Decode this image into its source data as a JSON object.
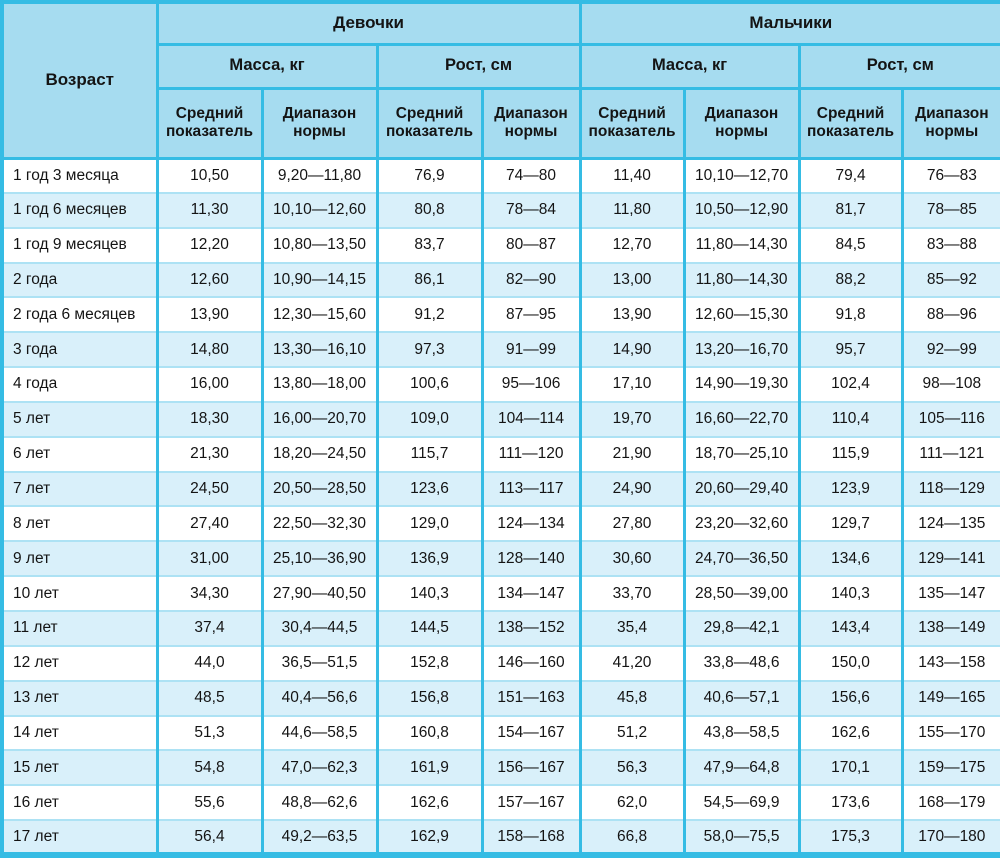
{
  "chart_data": {
    "type": "table",
    "header": {
      "age": "Возраст",
      "groups": [
        {
          "label": "Девочки"
        },
        {
          "label": "Мальчики"
        }
      ],
      "mass": "Масса, кг",
      "height": "Рост, см",
      "avg": "Средний показатель",
      "range": "Диапазон нормы"
    },
    "rows": [
      {
        "age": "1 год 3 месяца",
        "values": [
          "10,50",
          "9,20—11,80",
          "76,9",
          "74—80",
          "11,40",
          "10,10—12,70",
          "79,4",
          "76—83"
        ]
      },
      {
        "age": "1 год 6 месяцев",
        "values": [
          "11,30",
          "10,10—12,60",
          "80,8",
          "78—84",
          "11,80",
          "10,50—12,90",
          "81,7",
          "78—85"
        ]
      },
      {
        "age": "1 год 9 месяцев",
        "values": [
          "12,20",
          "10,80—13,50",
          "83,7",
          "80—87",
          "12,70",
          "11,80—14,30",
          "84,5",
          "83—88"
        ]
      },
      {
        "age": "2 года",
        "values": [
          "12,60",
          "10,90—14,15",
          "86,1",
          "82—90",
          "13,00",
          "11,80—14,30",
          "88,2",
          "85—92"
        ]
      },
      {
        "age": "2 года 6 месяцев",
        "values": [
          "13,90",
          "12,30—15,60",
          "91,2",
          "87—95",
          "13,90",
          "12,60—15,30",
          "91,8",
          "88—96"
        ]
      },
      {
        "age": "3 года",
        "values": [
          "14,80",
          "13,30—16,10",
          "97,3",
          "91—99",
          "14,90",
          "13,20—16,70",
          "95,7",
          "92—99"
        ]
      },
      {
        "age": "4 года",
        "values": [
          "16,00",
          "13,80—18,00",
          "100,6",
          "95—106",
          "17,10",
          "14,90—19,30",
          "102,4",
          "98—108"
        ]
      },
      {
        "age": "5 лет",
        "values": [
          "18,30",
          "16,00—20,70",
          "109,0",
          "104—114",
          "19,70",
          "16,60—22,70",
          "110,4",
          "105—116"
        ]
      },
      {
        "age": "6 лет",
        "values": [
          "21,30",
          "18,20—24,50",
          "115,7",
          "111—120",
          "21,90",
          "18,70—25,10",
          "115,9",
          "111—121"
        ]
      },
      {
        "age": "7 лет",
        "values": [
          "24,50",
          "20,50—28,50",
          "123,6",
          "113—117",
          "24,90",
          "20,60—29,40",
          "123,9",
          "118—129"
        ]
      },
      {
        "age": "8 лет",
        "values": [
          "27,40",
          "22,50—32,30",
          "129,0",
          "124—134",
          "27,80",
          "23,20—32,60",
          "129,7",
          "124—135"
        ]
      },
      {
        "age": "9 лет",
        "values": [
          "31,00",
          "25,10—36,90",
          "136,9",
          "128—140",
          "30,60",
          "24,70—36,50",
          "134,6",
          "129—141"
        ]
      },
      {
        "age": "10 лет",
        "values": [
          "34,30",
          "27,90—40,50",
          "140,3",
          "134—147",
          "33,70",
          "28,50—39,00",
          "140,3",
          "135—147"
        ]
      },
      {
        "age": "11 лет",
        "values": [
          "37,4",
          "30,4—44,5",
          "144,5",
          "138—152",
          "35,4",
          "29,8—42,1",
          "143,4",
          "138—149"
        ]
      },
      {
        "age": "12 лет",
        "values": [
          "44,0",
          "36,5—51,5",
          "152,8",
          "146—160",
          "41,20",
          "33,8—48,6",
          "150,0",
          "143—158"
        ]
      },
      {
        "age": "13 лет",
        "values": [
          "48,5",
          "40,4—56,6",
          "156,8",
          "151—163",
          "45,8",
          "40,6—57,1",
          "156,6",
          "149—165"
        ]
      },
      {
        "age": "14 лет",
        "values": [
          "51,3",
          "44,6—58,5",
          "160,8",
          "154—167",
          "51,2",
          "43,8—58,5",
          "162,6",
          "155—170"
        ]
      },
      {
        "age": "15 лет",
        "values": [
          "54,8",
          "47,0—62,3",
          "161,9",
          "156—167",
          "56,3",
          "47,9—64,8",
          "170,1",
          "159—175"
        ]
      },
      {
        "age": "16 лет",
        "values": [
          "55,6",
          "48,8—62,6",
          "162,6",
          "157—167",
          "62,0",
          "54,5—69,9",
          "173,6",
          "168—179"
        ]
      },
      {
        "age": "17 лет",
        "values": [
          "56,4",
          "49,2—63,5",
          "162,9",
          "158—168",
          "66,8",
          "58,0—75,5",
          "175,3",
          "170—180"
        ]
      }
    ]
  },
  "colors": {
    "border": "#35bce4",
    "header_bg": "#a6dcf0",
    "stripe_bg": "#d9f0fa",
    "row_line": "#ade2f4",
    "text": "#141414"
  }
}
